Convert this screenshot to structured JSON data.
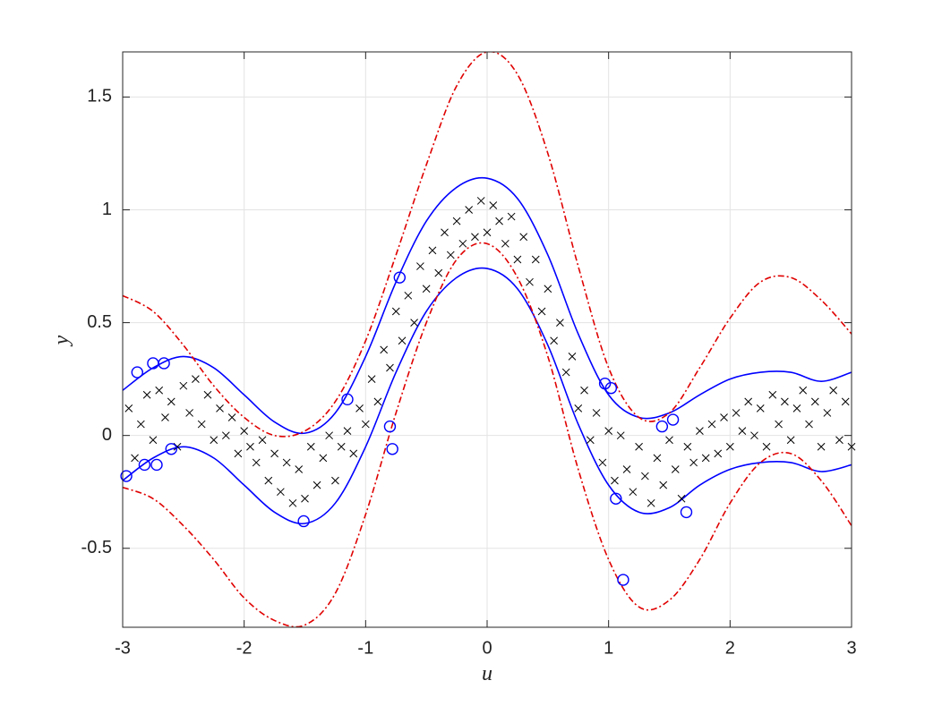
{
  "chart_data": {
    "type": "line",
    "x_label": "u",
    "y_label": "y",
    "xlim": [
      -3,
      3
    ],
    "ylim": [
      -0.85,
      1.7
    ],
    "xticks": [
      -3,
      -2,
      -1,
      0,
      1,
      2,
      3
    ],
    "yticks": [
      -0.5,
      0,
      0.5,
      1,
      1.5
    ],
    "grid": true,
    "series": [
      {
        "style": "line",
        "dash": "solid",
        "color": "#0000ff",
        "x": [
          -3,
          -2.75,
          -2.5,
          -2.25,
          -2,
          -1.75,
          -1.5,
          -1.25,
          -1,
          -0.75,
          -0.5,
          -0.25,
          0,
          0.25,
          0.5,
          0.75,
          1,
          1.25,
          1.5,
          1.75,
          2,
          2.25,
          2.5,
          2.75,
          3
        ],
        "values": [
          0.2,
          0.3,
          0.35,
          0.3,
          0.18,
          0.06,
          0.01,
          0.1,
          0.35,
          0.68,
          0.95,
          1.1,
          1.14,
          1.05,
          0.8,
          0.45,
          0.18,
          0.08,
          0.1,
          0.18,
          0.25,
          0.28,
          0.28,
          0.24,
          0.28
        ]
      },
      {
        "style": "line",
        "dash": "solid",
        "color": "#0000ff",
        "x": [
          -3,
          -2.75,
          -2.5,
          -2.25,
          -2,
          -1.75,
          -1.5,
          -1.25,
          -1,
          -0.75,
          -0.5,
          -0.25,
          0,
          0.25,
          0.5,
          0.75,
          1,
          1.25,
          1.5,
          1.75,
          2,
          2.25,
          2.5,
          2.75,
          3
        ],
        "values": [
          -0.2,
          -0.1,
          -0.05,
          -0.1,
          -0.22,
          -0.34,
          -0.39,
          -0.3,
          -0.05,
          0.28,
          0.55,
          0.7,
          0.74,
          0.65,
          0.4,
          0.05,
          -0.22,
          -0.34,
          -0.32,
          -0.22,
          -0.15,
          -0.12,
          -0.12,
          -0.16,
          -0.13
        ]
      },
      {
        "style": "line",
        "dash": "dashdot",
        "color": "#e00000",
        "x": [
          -3,
          -2.75,
          -2.5,
          -2.25,
          -2,
          -1.75,
          -1.5,
          -1.25,
          -1,
          -0.75,
          -0.5,
          -0.25,
          0,
          0.25,
          0.5,
          0.75,
          1,
          1.25,
          1.5,
          1.75,
          2,
          2.25,
          2.5,
          2.75,
          3
        ],
        "values": [
          0.62,
          0.55,
          0.4,
          0.22,
          0.08,
          0.0,
          0.02,
          0.15,
          0.42,
          0.8,
          1.2,
          1.55,
          1.7,
          1.6,
          1.25,
          0.75,
          0.3,
          0.08,
          0.1,
          0.3,
          0.52,
          0.68,
          0.7,
          0.6,
          0.45
        ]
      },
      {
        "style": "line",
        "dash": "dashdot",
        "color": "#e00000",
        "x": [
          -3,
          -2.75,
          -2.5,
          -2.25,
          -2,
          -1.75,
          -1.5,
          -1.25,
          -1,
          -0.75,
          -0.5,
          -0.25,
          0,
          0.25,
          0.5,
          0.75,
          1,
          1.25,
          1.5,
          1.75,
          2,
          2.25,
          2.5,
          2.75,
          3
        ],
        "values": [
          -0.23,
          -0.28,
          -0.4,
          -0.55,
          -0.72,
          -0.82,
          -0.84,
          -0.7,
          -0.35,
          0.1,
          0.5,
          0.78,
          0.85,
          0.7,
          0.35,
          -0.15,
          -0.55,
          -0.76,
          -0.73,
          -0.55,
          -0.3,
          -0.12,
          -0.08,
          -0.2,
          -0.4
        ]
      },
      {
        "style": "scatter",
        "marker": "x",
        "color": "#000000",
        "x": [
          -2.95,
          -2.9,
          -2.85,
          -2.8,
          -2.75,
          -2.7,
          -2.65,
          -2.6,
          -2.55,
          -2.5,
          -2.45,
          -2.4,
          -2.35,
          -2.3,
          -2.25,
          -2.2,
          -2.15,
          -2.1,
          -2.05,
          -2.0,
          -1.95,
          -1.9,
          -1.85,
          -1.8,
          -1.75,
          -1.7,
          -1.65,
          -1.6,
          -1.55,
          -1.5,
          -1.45,
          -1.4,
          -1.35,
          -1.3,
          -1.25,
          -1.2,
          -1.15,
          -1.1,
          -1.05,
          -1.0,
          -0.95,
          -0.9,
          -0.85,
          -0.8,
          -0.75,
          -0.7,
          -0.65,
          -0.6,
          -0.55,
          -0.5,
          -0.45,
          -0.4,
          -0.35,
          -0.3,
          -0.25,
          -0.2,
          -0.15,
          -0.1,
          -0.05,
          0.0,
          0.05,
          0.1,
          0.15,
          0.2,
          0.25,
          0.3,
          0.35,
          0.4,
          0.45,
          0.5,
          0.55,
          0.6,
          0.65,
          0.7,
          0.75,
          0.8,
          0.85,
          0.9,
          0.95,
          1.0,
          1.05,
          1.1,
          1.15,
          1.2,
          1.25,
          1.3,
          1.35,
          1.4,
          1.45,
          1.5,
          1.55,
          1.6,
          1.65,
          1.7,
          1.75,
          1.8,
          1.85,
          1.9,
          1.95,
          2.0,
          2.05,
          2.1,
          2.15,
          2.2,
          2.25,
          2.3,
          2.35,
          2.4,
          2.45,
          2.5,
          2.55,
          2.6,
          2.65,
          2.7,
          2.75,
          2.8,
          2.85,
          2.9,
          2.95,
          3.0
        ],
        "values": [
          0.12,
          -0.1,
          0.05,
          0.18,
          -0.02,
          0.2,
          0.08,
          0.15,
          -0.05,
          0.22,
          0.1,
          0.25,
          0.05,
          0.18,
          -0.02,
          0.12,
          0.0,
          0.08,
          -0.08,
          0.02,
          -0.05,
          -0.12,
          -0.02,
          -0.2,
          -0.08,
          -0.25,
          -0.12,
          -0.3,
          -0.15,
          -0.28,
          -0.05,
          -0.22,
          -0.1,
          0.0,
          -0.2,
          -0.05,
          0.02,
          -0.08,
          0.12,
          0.05,
          0.25,
          0.15,
          0.38,
          0.3,
          0.55,
          0.42,
          0.62,
          0.5,
          0.75,
          0.65,
          0.82,
          0.72,
          0.9,
          0.8,
          0.95,
          0.85,
          1.0,
          0.88,
          1.04,
          0.9,
          1.02,
          0.95,
          0.85,
          0.97,
          0.78,
          0.88,
          0.68,
          0.78,
          0.55,
          0.65,
          0.42,
          0.5,
          0.28,
          0.35,
          0.12,
          0.2,
          -0.02,
          0.1,
          -0.12,
          0.02,
          -0.2,
          0.0,
          -0.15,
          -0.25,
          -0.05,
          -0.18,
          -0.3,
          -0.1,
          -0.22,
          -0.02,
          -0.15,
          -0.28,
          -0.05,
          -0.12,
          0.02,
          -0.1,
          0.05,
          -0.08,
          0.08,
          -0.05,
          0.1,
          0.02,
          0.15,
          0.0,
          0.12,
          -0.05,
          0.18,
          0.05,
          0.15,
          -0.02,
          0.12,
          0.2,
          0.05,
          0.15,
          -0.05,
          0.1,
          0.2,
          -0.02,
          0.15,
          -0.05
        ]
      },
      {
        "style": "scatter",
        "marker": "circle",
        "color": "#0000ff",
        "x": [
          -2.97,
          -2.88,
          -2.82,
          -2.75,
          -2.72,
          -2.66,
          -2.6,
          -1.51,
          -1.15,
          -0.8,
          -0.78,
          -0.72,
          0.97,
          1.02,
          1.06,
          1.12,
          1.44,
          1.53,
          1.64
        ],
        "values": [
          -0.18,
          0.28,
          -0.13,
          0.32,
          -0.13,
          0.32,
          -0.06,
          -0.38,
          0.16,
          0.04,
          -0.06,
          0.7,
          0.23,
          0.21,
          -0.28,
          -0.64,
          0.04,
          0.07,
          -0.34
        ]
      }
    ]
  }
}
